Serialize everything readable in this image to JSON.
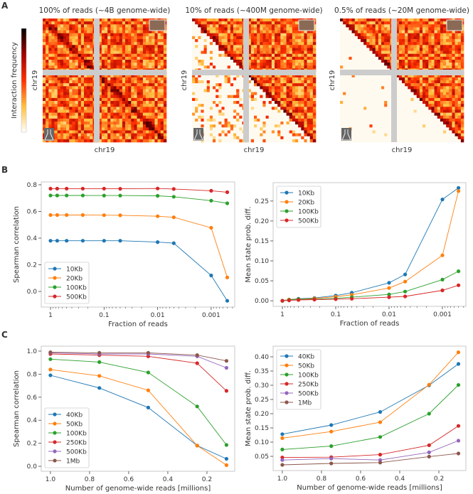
{
  "panel_labels": [
    "A",
    "B",
    "C"
  ],
  "panel_a": {
    "colorbar_label": "Interaction frequency",
    "maps": [
      {
        "title": "100% of reads (~4B genome-wide)",
        "xlabel": "chr19",
        "ylabel": "chr19",
        "fraction": 1.0
      },
      {
        "title": "10% of reads (~400M genome-wide)",
        "xlabel": "chr19",
        "ylabel": "chr19",
        "fraction": 0.1
      },
      {
        "title": "0.5% of reads (~20M genome-wide)",
        "xlabel": "chr19",
        "ylabel": "chr19",
        "fraction": 0.005
      }
    ],
    "icons": [
      "monitor-icon",
      "flask-icon"
    ]
  },
  "colors": {
    "c0": "#1f77b4",
    "c1": "#ff7f0e",
    "c2": "#2ca02c",
    "c3": "#d62728",
    "c4": "#9467bd",
    "c5": "#8c564b"
  },
  "chart_data": [
    {
      "id": "b-left",
      "type": "line",
      "xscale": "log",
      "xreversed": true,
      "xlabel": "Fraction of reads",
      "ylabel": "Spearman correlation",
      "xlim": [
        1.49,
        0.000363
      ],
      "ylim": [
        -0.117,
        0.821
      ],
      "xticks": [
        1,
        0.1,
        0.01,
        0.001
      ],
      "xticklabels": [
        "1",
        "0.1",
        "0.01",
        "0.001"
      ],
      "yticks": [
        0.0,
        0.2,
        0.4,
        0.6,
        0.8
      ],
      "yticklabels": [
        "0.0",
        "0.2",
        "0.4",
        "0.6",
        "0.8"
      ],
      "legend": "bottom-left",
      "x": [
        1,
        0.75,
        0.5,
        0.25,
        0.1,
        0.05,
        0.01,
        0.005,
        0.001,
        0.0005
      ],
      "series": [
        {
          "name": "10Kb",
          "color": "#1f77b4",
          "values": [
            0.38,
            0.38,
            0.38,
            0.38,
            0.38,
            0.38,
            0.37,
            0.362,
            0.12,
            -0.07
          ]
        },
        {
          "name": "20Kb",
          "color": "#ff7f0e",
          "values": [
            0.573,
            0.573,
            0.573,
            0.573,
            0.572,
            0.571,
            0.564,
            0.556,
            0.477,
            0.105
          ]
        },
        {
          "name": "100Kb",
          "color": "#2ca02c",
          "values": [
            0.72,
            0.72,
            0.72,
            0.72,
            0.719,
            0.719,
            0.717,
            0.71,
            0.681,
            0.661
          ]
        },
        {
          "name": "500Kb",
          "color": "#d62728",
          "values": [
            0.771,
            0.771,
            0.771,
            0.771,
            0.771,
            0.77,
            0.772,
            0.768,
            0.755,
            0.744
          ]
        }
      ]
    },
    {
      "id": "b-right",
      "type": "line",
      "xscale": "log",
      "xreversed": true,
      "xlabel": "Fraction of reads",
      "ylabel": "Mean state prob. diff.",
      "xlim": [
        1.49,
        0.000363
      ],
      "ylim": [
        -0.014,
        0.296
      ],
      "xticks": [
        1,
        0.1,
        0.01,
        0.001
      ],
      "xticklabels": [
        "1",
        "0.1",
        "0.01",
        "0.001"
      ],
      "yticks": [
        0.0,
        0.05,
        0.1,
        0.15,
        0.2,
        0.25
      ],
      "yticklabels": [
        "0.00",
        "0.05",
        "0.10",
        "0.15",
        "0.20",
        "0.25"
      ],
      "legend": "top-left",
      "x": [
        1,
        0.75,
        0.5,
        0.25,
        0.1,
        0.05,
        0.01,
        0.005,
        0.001,
        0.0005
      ],
      "series": [
        {
          "name": "10Kb",
          "color": "#1f77b4",
          "values": [
            0.0,
            0.003,
            0.005,
            0.007,
            0.013,
            0.02,
            0.045,
            0.066,
            0.254,
            0.283
          ]
        },
        {
          "name": "20Kb",
          "color": "#ff7f0e",
          "values": [
            0.0,
            0.003,
            0.004,
            0.006,
            0.01,
            0.015,
            0.032,
            0.048,
            0.114,
            0.275
          ]
        },
        {
          "name": "100Kb",
          "color": "#2ca02c",
          "values": [
            0.0,
            0.002,
            0.004,
            0.004,
            0.006,
            0.009,
            0.016,
            0.023,
            0.053,
            0.074
          ]
        },
        {
          "name": "500Kb",
          "color": "#d62728",
          "values": [
            0.0,
            0.001,
            0.002,
            0.003,
            0.004,
            0.005,
            0.009,
            0.011,
            0.026,
            0.039
          ]
        }
      ]
    },
    {
      "id": "c-left",
      "type": "line",
      "xscale": "linear",
      "xreversed": true,
      "xlabel": "Number of genome-wide reads [millions]",
      "ylabel": "Spearman correlation",
      "xlim": [
        1.047,
        0.058
      ],
      "ylim": [
        -0.043,
        1.043
      ],
      "xticks": [
        1.0,
        0.8,
        0.6,
        0.4,
        0.2
      ],
      "xticklabels": [
        "1.0",
        "0.8",
        "0.6",
        "0.4",
        "0.2"
      ],
      "yticks": [
        0.0,
        0.2,
        0.4,
        0.6,
        0.8,
        1.0
      ],
      "yticklabels": [
        "0.0",
        "0.2",
        "0.4",
        "0.6",
        "0.8",
        "1.0"
      ],
      "legend": "bottom-left",
      "x": [
        1.0,
        0.75,
        0.5,
        0.25,
        0.1
      ],
      "series": [
        {
          "name": "40Kb",
          "color": "#1f77b4",
          "values": [
            0.79,
            0.68,
            0.51,
            0.18,
            0.065
          ]
        },
        {
          "name": "50Kb",
          "color": "#ff7f0e",
          "values": [
            0.84,
            0.785,
            0.66,
            0.18,
            0.01
          ]
        },
        {
          "name": "100Kb",
          "color": "#2ca02c",
          "values": [
            0.93,
            0.905,
            0.815,
            0.52,
            0.185
          ]
        },
        {
          "name": "250Kb",
          "color": "#d62728",
          "values": [
            0.975,
            0.965,
            0.955,
            0.895,
            0.655
          ]
        },
        {
          "name": "500Kb",
          "color": "#9467bd",
          "values": [
            0.985,
            0.975,
            0.975,
            0.955,
            0.855
          ]
        },
        {
          "name": "1Mb",
          "color": "#8c564b",
          "values": [
            0.99,
            0.985,
            0.985,
            0.965,
            0.915
          ]
        }
      ]
    },
    {
      "id": "c-right",
      "type": "line",
      "xscale": "linear",
      "xreversed": true,
      "xlabel": "Number of genome-wide reads [millions]",
      "ylabel": "Mean state prob. diff.",
      "xlim": [
        1.047,
        0.062
      ],
      "ylim": [
        0.0,
        0.4375
      ],
      "xticks": [
        1.0,
        0.8,
        0.6,
        0.4,
        0.2
      ],
      "xticklabels": [
        "1.0",
        "0.8",
        "0.6",
        "0.4",
        "0.2"
      ],
      "yticks": [
        0.05,
        0.1,
        0.15,
        0.2,
        0.25,
        0.3,
        0.35,
        0.4
      ],
      "yticklabels": [
        "0.05",
        "0.10",
        "0.15",
        "0.20",
        "0.25",
        "0.30",
        "0.35",
        "0.40"
      ],
      "legend": "top-left",
      "x": [
        1.0,
        0.75,
        0.5,
        0.25,
        0.1
      ],
      "series": [
        {
          "name": "40Kb",
          "color": "#1f77b4",
          "values": [
            0.128,
            0.16,
            0.206,
            0.3,
            0.375
          ]
        },
        {
          "name": "50Kb",
          "color": "#ff7f0e",
          "values": [
            0.114,
            0.137,
            0.17,
            0.302,
            0.416
          ]
        },
        {
          "name": "100Kb",
          "color": "#2ca02c",
          "values": [
            0.074,
            0.086,
            0.118,
            0.2,
            0.301
          ]
        },
        {
          "name": "250Kb",
          "color": "#d62728",
          "values": [
            0.046,
            0.047,
            0.056,
            0.089,
            0.157
          ]
        },
        {
          "name": "500Kb",
          "color": "#9467bd",
          "values": [
            0.037,
            0.042,
            0.037,
            0.064,
            0.105
          ]
        },
        {
          "name": "1Mb",
          "color": "#8c564b",
          "values": [
            0.02,
            0.025,
            0.028,
            0.049,
            0.06
          ]
        }
      ]
    }
  ]
}
